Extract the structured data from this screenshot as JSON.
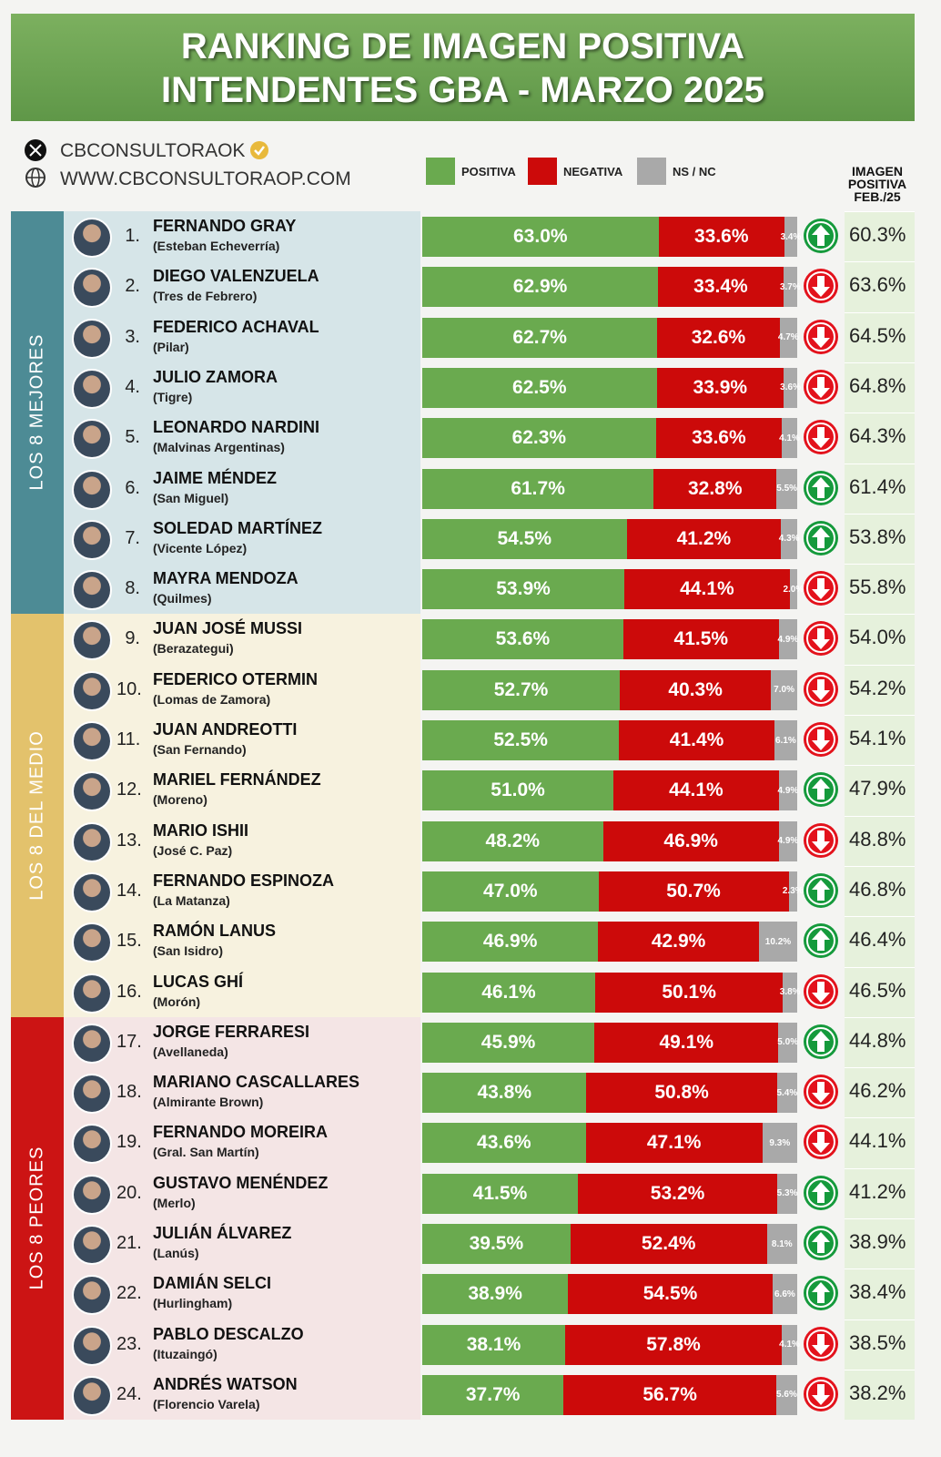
{
  "chart_data": {
    "type": "stacked-bar-horizontal",
    "title": "RANKING DE IMAGEN POSITIVA",
    "subtitle": "INTENDENTES GBA - MARZO 2025",
    "source": {
      "handle": "CBCONSULTORAOK",
      "website": "WWW.CBCONSULTORAOP.COM"
    },
    "xlim": [
      0,
      100
    ],
    "groups": [
      {
        "label": "LOS 8 MEJORES",
        "color": "#4d8b95",
        "background": "#d6e5e8"
      },
      {
        "label": "LOS 8 DEL MEDIO",
        "color": "#e3c26c",
        "background": "#f7f2df"
      },
      {
        "label": "LOS 8 PEORES",
        "color": "#cc1414",
        "background": "#f4e5e5"
      }
    ],
    "ranks": [
      "1.",
      "2.",
      "3.",
      "4.",
      "5.",
      "6.",
      "7.",
      "8.",
      "9.",
      "10.",
      "11.",
      "12.",
      "13.",
      "14.",
      "15.",
      "16.",
      "17.",
      "18.",
      "19.",
      "20.",
      "21.",
      "22.",
      "23.",
      "24."
    ],
    "categories": [
      "FERNANDO GRAY",
      "DIEGO VALENZUELA",
      "FEDERICO ACHAVAL",
      "JULIO ZAMORA",
      "LEONARDO NARDINI",
      "JAIME MÉNDEZ",
      "SOLEDAD MARTÍNEZ",
      "MAYRA MENDOZA",
      "JUAN JOSÉ MUSSI",
      "FEDERICO OTERMIN",
      "JUAN ANDREOTTI",
      "MARIEL FERNÁNDEZ",
      "MARIO ISHII",
      "FERNANDO ESPINOZA",
      "RAMÓN LANUS",
      "LUCAS GHÍ",
      "JORGE FERRARESI",
      "MARIANO CASCALLARES",
      "FERNANDO MOREIRA",
      "GUSTAVO MENÉNDEZ",
      "JULIÁN ÁLVAREZ",
      "DAMIÁN SELCI",
      "PABLO DESCALZO",
      "ANDRÉS WATSON"
    ],
    "districts": [
      "(Esteban Echeverría)",
      "(Tres de Febrero)",
      "(Pilar)",
      "(Tigre)",
      "(Malvinas Argentinas)",
      "(San Miguel)",
      "(Vicente López)",
      "(Quilmes)",
      "(Berazategui)",
      "(Lomas de Zamora)",
      "(San Fernando)",
      "(Moreno)",
      "(José C. Paz)",
      "(La Matanza)",
      "(San Isidro)",
      "(Morón)",
      "(Avellaneda)",
      "(Almirante Brown)",
      "(Gral. San Martín)",
      "(Merlo)",
      "(Lanús)",
      "(Hurlingham)",
      "(Ituzaingó)",
      "(Florencio Varela)"
    ],
    "series": [
      {
        "name": "POSITIVA",
        "color": "#6aaa4f",
        "values": [
          63.0,
          62.9,
          62.7,
          62.5,
          62.3,
          61.7,
          54.5,
          53.9,
          53.6,
          52.7,
          52.5,
          51.0,
          48.2,
          47.0,
          46.9,
          46.1,
          45.9,
          43.8,
          43.6,
          41.5,
          39.5,
          38.9,
          38.1,
          37.7
        ],
        "value_labels": [
          "63.0%",
          "62.9%",
          "62.7%",
          "62.5%",
          "62.3%",
          "61.7%",
          "54.5%",
          "53.9%",
          "53.6%",
          "52.7%",
          "52.5%",
          "51.0%",
          "48.2%",
          "47.0%",
          "46.9%",
          "46.1%",
          "45.9%",
          "43.8%",
          "43.6%",
          "41.5%",
          "39.5%",
          "38.9%",
          "38.1%",
          "37.7%"
        ]
      },
      {
        "name": "NEGATIVA",
        "color": "#cc0a0a",
        "values": [
          33.6,
          33.4,
          32.6,
          33.9,
          33.6,
          32.8,
          41.2,
          44.1,
          41.5,
          40.3,
          41.4,
          44.1,
          46.9,
          50.7,
          42.9,
          50.1,
          49.1,
          50.8,
          47.1,
          53.2,
          52.4,
          54.5,
          57.8,
          56.7
        ],
        "value_labels": [
          "33.6%",
          "33.4%",
          "32.6%",
          "33.9%",
          "33.6%",
          "32.8%",
          "41.2%",
          "44.1%",
          "41.5%",
          "40.3%",
          "41.4%",
          "44.1%",
          "46.9%",
          "50.7%",
          "42.9%",
          "50.1%",
          "49.1%",
          "50.8%",
          "47.1%",
          "53.2%",
          "52.4%",
          "54.5%",
          "57.8%",
          "56.7%"
        ]
      },
      {
        "name": "NS / NC",
        "color": "#a9a9a9",
        "values": [
          3.4,
          3.7,
          4.7,
          3.6,
          4.1,
          5.5,
          4.3,
          2.0,
          4.9,
          7.0,
          6.1,
          4.9,
          4.9,
          2.3,
          10.2,
          3.8,
          5.0,
          5.4,
          9.3,
          5.3,
          8.1,
          6.6,
          4.1,
          5.6
        ],
        "value_labels": [
          "3.4%",
          "3.7%",
          "4.7%",
          "3.6%",
          "4.1%",
          "5.5%",
          "4.3%",
          "2.0%",
          "4.9%",
          "7.0%",
          "6.1%",
          "4.9%",
          "4.9%",
          "2.3%",
          "10.2%",
          "3.8%",
          "5.0%",
          "5.4%",
          "9.3%",
          "5.3%",
          "8.1%",
          "6.6%",
          "4.1%",
          "5.6%"
        ]
      }
    ],
    "trend": [
      "up",
      "down",
      "down",
      "down",
      "down",
      "up",
      "up",
      "down",
      "down",
      "down",
      "down",
      "up",
      "down",
      "up",
      "up",
      "down",
      "up",
      "down",
      "down",
      "up",
      "up",
      "up",
      "down",
      "down"
    ],
    "trend_colors": {
      "up": "#159a3c",
      "down": "#e3121c"
    },
    "previous": {
      "name": "IMAGEN POSITIVA FEB./25",
      "values": [
        60.3,
        63.6,
        64.5,
        64.8,
        64.3,
        61.4,
        53.8,
        55.8,
        54.0,
        54.2,
        54.1,
        47.9,
        48.8,
        46.8,
        46.4,
        46.5,
        44.8,
        46.2,
        44.1,
        41.2,
        38.9,
        38.4,
        38.5,
        38.2
      ],
      "value_labels": [
        "60.3%",
        "63.6%",
        "64.5%",
        "64.8%",
        "64.3%",
        "61.4%",
        "53.8%",
        "55.8%",
        "54.0%",
        "54.2%",
        "54.1%",
        "47.9%",
        "48.8%",
        "46.8%",
        "46.4%",
        "46.5%",
        "44.8%",
        "46.2%",
        "44.1%",
        "41.2%",
        "38.9%",
        "38.4%",
        "38.5%",
        "38.2%"
      ]
    }
  }
}
